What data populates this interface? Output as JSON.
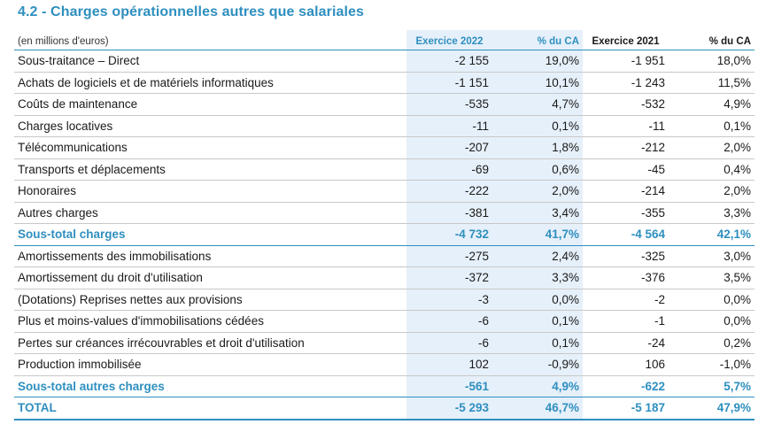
{
  "title": "4.2 - Charges opérationnelles autres que salariales",
  "colors": {
    "accent": "#2e8fbf",
    "highlight_column": "#e6f0fa"
  },
  "table": {
    "headers": {
      "label": "(en millions d'euros)",
      "year_current": "Exercice 2022",
      "pct_current": "% du CA",
      "year_previous": "Exercice 2021",
      "pct_previous": "% du CA"
    },
    "rows": [
      {
        "label": "Sous-traitance – Direct",
        "v2022": "-2 155",
        "p2022": "19,0%",
        "v2021": "-1 951",
        "p2021": "18,0%",
        "type": "normal"
      },
      {
        "label": "Achats de logiciels et de matériels informatiques",
        "v2022": "-1 151",
        "p2022": "10,1%",
        "v2021": "-1 243",
        "p2021": "11,5%",
        "type": "normal"
      },
      {
        "label": "Coûts de maintenance",
        "v2022": "-535",
        "p2022": "4,7%",
        "v2021": "-532",
        "p2021": "4,9%",
        "type": "normal"
      },
      {
        "label": "Charges locatives",
        "v2022": "-11",
        "p2022": "0,1%",
        "v2021": "-11",
        "p2021": "0,1%",
        "type": "normal"
      },
      {
        "label": "Télécommunications",
        "v2022": "-207",
        "p2022": "1,8%",
        "v2021": "-212",
        "p2021": "2,0%",
        "type": "normal"
      },
      {
        "label": "Transports et déplacements",
        "v2022": "-69",
        "p2022": "0,6%",
        "v2021": "-45",
        "p2021": "0,4%",
        "type": "normal"
      },
      {
        "label": "Honoraires",
        "v2022": "-222",
        "p2022": "2,0%",
        "v2021": "-214",
        "p2021": "2,0%",
        "type": "normal"
      },
      {
        "label": "Autres charges",
        "v2022": "-381",
        "p2022": "3,4%",
        "v2021": "-355",
        "p2021": "3,3%",
        "type": "normal"
      },
      {
        "label": "Sous-total charges",
        "v2022": "-4 732",
        "p2022": "41,7%",
        "v2021": "-4 564",
        "p2021": "42,1%",
        "type": "subtotal"
      },
      {
        "label": "Amortissements des immobilisations",
        "v2022": "-275",
        "p2022": "2,4%",
        "v2021": "-325",
        "p2021": "3,0%",
        "type": "normal"
      },
      {
        "label": "Amortissement du droit d'utilisation",
        "v2022": "-372",
        "p2022": "3,3%",
        "v2021": "-376",
        "p2021": "3,5%",
        "type": "normal"
      },
      {
        "label": "(Dotations) Reprises nettes aux provisions",
        "v2022": "-3",
        "p2022": "0,0%",
        "v2021": "-2",
        "p2021": "0,0%",
        "type": "normal"
      },
      {
        "label": "Plus et moins-values d'immobilisations cédées",
        "v2022": "-6",
        "p2022": "0,1%",
        "v2021": "-1",
        "p2021": "0,0%",
        "type": "normal"
      },
      {
        "label": "Pertes sur créances irrécouvrables et droit d'utilisation",
        "v2022": "-6",
        "p2022": "0,1%",
        "v2021": "-24",
        "p2021": "0,2%",
        "type": "normal"
      },
      {
        "label": "Production immobilisée",
        "v2022": "102",
        "p2022": "-0,9%",
        "v2021": "106",
        "p2021": "-1,0%",
        "type": "normal"
      },
      {
        "label": "Sous-total autres charges",
        "v2022": "-561",
        "p2022": "4,9%",
        "v2021": "-622",
        "p2021": "5,7%",
        "type": "subtotal"
      },
      {
        "label": "TOTAL",
        "v2022": "-5 293",
        "p2022": "46,7%",
        "v2021": "-5 187",
        "p2021": "47,9%",
        "type": "total"
      }
    ]
  }
}
